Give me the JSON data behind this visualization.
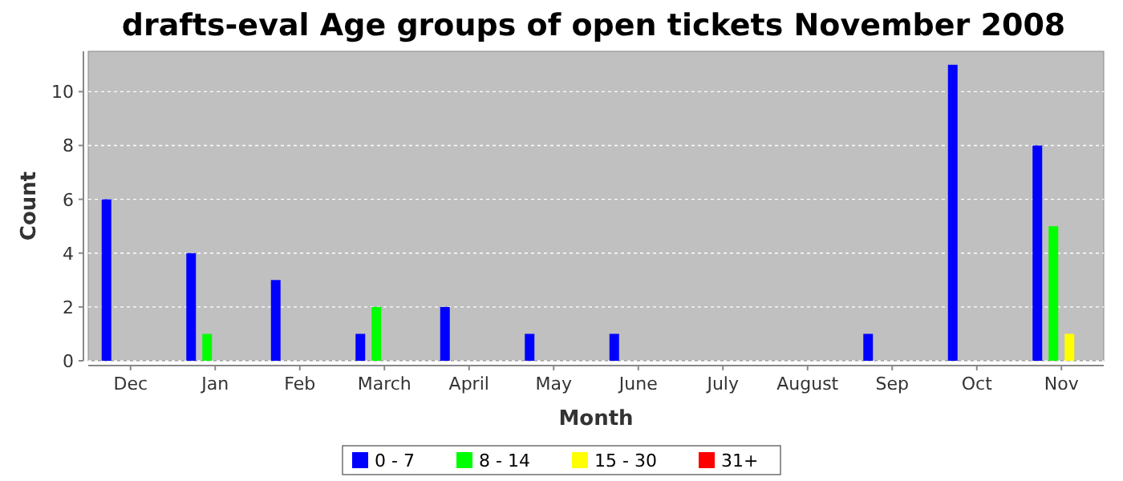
{
  "chart_data": {
    "type": "bar",
    "title": "drafts-eval Age groups of open tickets November 2008",
    "xlabel": "Month",
    "ylabel": "Count",
    "categories": [
      "Dec",
      "Jan",
      "Feb",
      "March",
      "April",
      "May",
      "June",
      "July",
      "August",
      "Sep",
      "Oct",
      "Nov"
    ],
    "series": [
      {
        "name": "0 - 7",
        "color": "#0000ff",
        "values": [
          6,
          4,
          3,
          1,
          2,
          1,
          1,
          null,
          null,
          1,
          11,
          8
        ]
      },
      {
        "name": "8 - 14",
        "color": "#00ff00",
        "values": [
          null,
          1,
          null,
          2,
          null,
          null,
          null,
          null,
          null,
          null,
          null,
          5
        ]
      },
      {
        "name": "15 - 30",
        "color": "#ffff00",
        "values": [
          null,
          null,
          null,
          null,
          null,
          null,
          null,
          null,
          null,
          null,
          null,
          1
        ]
      },
      {
        "name": "31+",
        "color": "#ff0000",
        "values": [
          null,
          null,
          null,
          null,
          null,
          null,
          null,
          null,
          null,
          null,
          null,
          null
        ]
      }
    ],
    "ylim": [
      0,
      11.5
    ],
    "yticks": [
      0,
      2,
      4,
      6,
      8,
      10
    ],
    "grid": "y",
    "legend": "bottom"
  }
}
